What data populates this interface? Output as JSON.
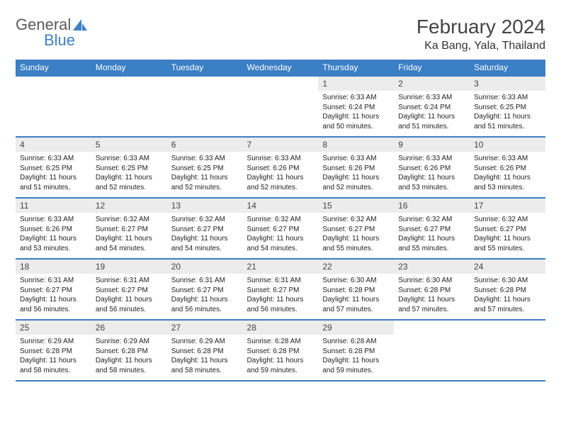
{
  "brand": {
    "part1": "General",
    "part2": "Blue",
    "icon_color": "#3b7fc4",
    "text_color": "#5a5a5a"
  },
  "header": {
    "month": "February 2024",
    "location": "Ka Bang, Yala, Thailand"
  },
  "style": {
    "accent_color": "#3b7fc4",
    "daynum_bg": "#ececec",
    "page_bg": "#ffffff",
    "body_font_size": 10,
    "header_font_size": 28,
    "location_font_size": 16,
    "weekday_font_size": 12
  },
  "calendar": {
    "type": "table",
    "columns": [
      "Sunday",
      "Monday",
      "Tuesday",
      "Wednesday",
      "Thursday",
      "Friday",
      "Saturday"
    ],
    "first_weekday_index": 4,
    "days": [
      {
        "n": 1,
        "sunrise": "6:33 AM",
        "sunset": "6:24 PM",
        "daylight": "11 hours and 50 minutes."
      },
      {
        "n": 2,
        "sunrise": "6:33 AM",
        "sunset": "6:24 PM",
        "daylight": "11 hours and 51 minutes."
      },
      {
        "n": 3,
        "sunrise": "6:33 AM",
        "sunset": "6:25 PM",
        "daylight": "11 hours and 51 minutes."
      },
      {
        "n": 4,
        "sunrise": "6:33 AM",
        "sunset": "6:25 PM",
        "daylight": "11 hours and 51 minutes."
      },
      {
        "n": 5,
        "sunrise": "6:33 AM",
        "sunset": "6:25 PM",
        "daylight": "11 hours and 52 minutes."
      },
      {
        "n": 6,
        "sunrise": "6:33 AM",
        "sunset": "6:25 PM",
        "daylight": "11 hours and 52 minutes."
      },
      {
        "n": 7,
        "sunrise": "6:33 AM",
        "sunset": "6:26 PM",
        "daylight": "11 hours and 52 minutes."
      },
      {
        "n": 8,
        "sunrise": "6:33 AM",
        "sunset": "6:26 PM",
        "daylight": "11 hours and 52 minutes."
      },
      {
        "n": 9,
        "sunrise": "6:33 AM",
        "sunset": "6:26 PM",
        "daylight": "11 hours and 53 minutes."
      },
      {
        "n": 10,
        "sunrise": "6:33 AM",
        "sunset": "6:26 PM",
        "daylight": "11 hours and 53 minutes."
      },
      {
        "n": 11,
        "sunrise": "6:33 AM",
        "sunset": "6:26 PM",
        "daylight": "11 hours and 53 minutes."
      },
      {
        "n": 12,
        "sunrise": "6:32 AM",
        "sunset": "6:27 PM",
        "daylight": "11 hours and 54 minutes."
      },
      {
        "n": 13,
        "sunrise": "6:32 AM",
        "sunset": "6:27 PM",
        "daylight": "11 hours and 54 minutes."
      },
      {
        "n": 14,
        "sunrise": "6:32 AM",
        "sunset": "6:27 PM",
        "daylight": "11 hours and 54 minutes."
      },
      {
        "n": 15,
        "sunrise": "6:32 AM",
        "sunset": "6:27 PM",
        "daylight": "11 hours and 55 minutes."
      },
      {
        "n": 16,
        "sunrise": "6:32 AM",
        "sunset": "6:27 PM",
        "daylight": "11 hours and 55 minutes."
      },
      {
        "n": 17,
        "sunrise": "6:32 AM",
        "sunset": "6:27 PM",
        "daylight": "11 hours and 55 minutes."
      },
      {
        "n": 18,
        "sunrise": "6:31 AM",
        "sunset": "6:27 PM",
        "daylight": "11 hours and 56 minutes."
      },
      {
        "n": 19,
        "sunrise": "6:31 AM",
        "sunset": "6:27 PM",
        "daylight": "11 hours and 56 minutes."
      },
      {
        "n": 20,
        "sunrise": "6:31 AM",
        "sunset": "6:27 PM",
        "daylight": "11 hours and 56 minutes."
      },
      {
        "n": 21,
        "sunrise": "6:31 AM",
        "sunset": "6:27 PM",
        "daylight": "11 hours and 56 minutes."
      },
      {
        "n": 22,
        "sunrise": "6:30 AM",
        "sunset": "6:28 PM",
        "daylight": "11 hours and 57 minutes."
      },
      {
        "n": 23,
        "sunrise": "6:30 AM",
        "sunset": "6:28 PM",
        "daylight": "11 hours and 57 minutes."
      },
      {
        "n": 24,
        "sunrise": "6:30 AM",
        "sunset": "6:28 PM",
        "daylight": "11 hours and 57 minutes."
      },
      {
        "n": 25,
        "sunrise": "6:29 AM",
        "sunset": "6:28 PM",
        "daylight": "11 hours and 58 minutes."
      },
      {
        "n": 26,
        "sunrise": "6:29 AM",
        "sunset": "6:28 PM",
        "daylight": "11 hours and 58 minutes."
      },
      {
        "n": 27,
        "sunrise": "6:29 AM",
        "sunset": "6:28 PM",
        "daylight": "11 hours and 58 minutes."
      },
      {
        "n": 28,
        "sunrise": "6:28 AM",
        "sunset": "6:28 PM",
        "daylight": "11 hours and 59 minutes."
      },
      {
        "n": 29,
        "sunrise": "6:28 AM",
        "sunset": "6:28 PM",
        "daylight": "11 hours and 59 minutes."
      }
    ],
    "labels": {
      "sunrise": "Sunrise:",
      "sunset": "Sunset:",
      "daylight": "Daylight:"
    }
  }
}
